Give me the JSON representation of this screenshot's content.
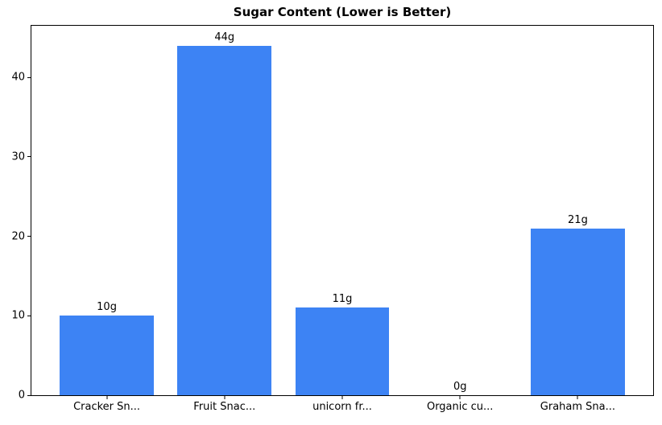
{
  "chart_data": {
    "type": "bar",
    "title": "Sugar Content (Lower is Better)",
    "categories": [
      "Cracker Sn...",
      "Fruit Snac...",
      "unicorn fr...",
      "Organic cu...",
      "Graham Sna..."
    ],
    "values": [
      10,
      44,
      11,
      0,
      21
    ],
    "bar_labels": [
      "10g",
      "44g",
      "11g",
      "0g",
      "21g"
    ],
    "yticks": [
      0,
      10,
      20,
      30,
      40
    ],
    "ylim": [
      0,
      46.5
    ],
    "xlabel": "",
    "ylabel": "",
    "bar_color": "#3d83f4",
    "grid": "off",
    "legend": "none"
  }
}
